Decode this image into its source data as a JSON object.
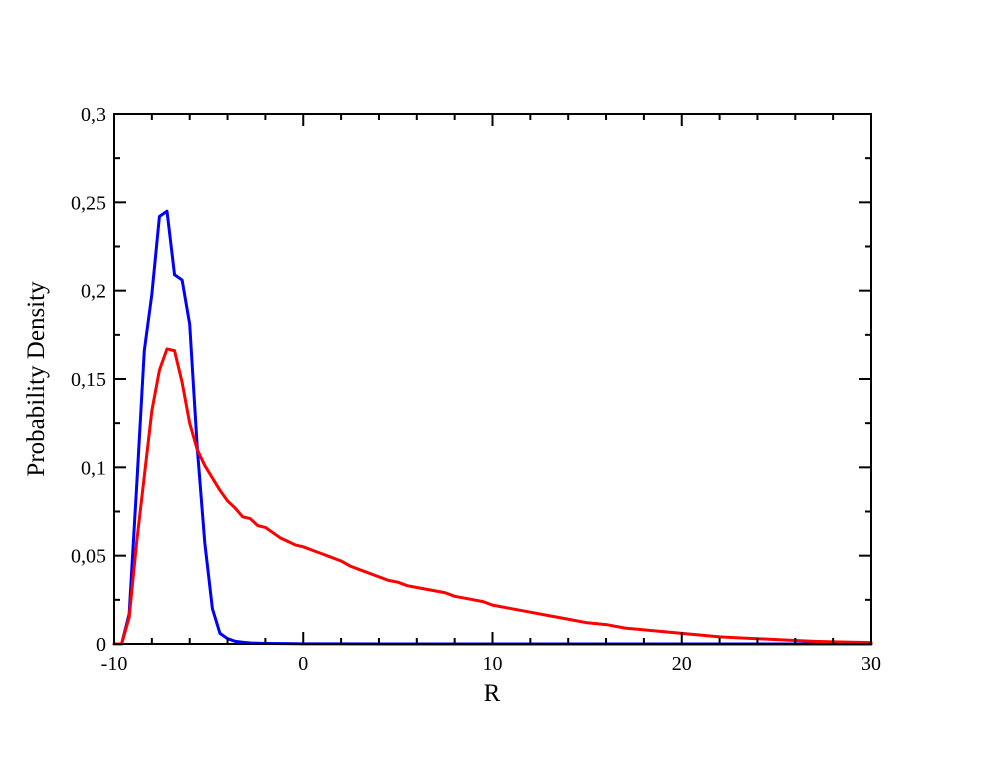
{
  "chart_data": {
    "type": "line",
    "title": "",
    "xlabel": "R",
    "ylabel": "Probability Density",
    "xlim": [
      -10,
      30
    ],
    "ylim": [
      0,
      0.3
    ],
    "x_ticks": [
      -10,
      0,
      10,
      20,
      30
    ],
    "x_tick_labels": [
      "-10",
      "0",
      "10",
      "20",
      "30"
    ],
    "y_ticks": [
      0,
      0.05,
      0.1,
      0.15,
      0.2,
      0.25,
      0.3
    ],
    "y_tick_labels": [
      "0",
      "0,05",
      "0,1",
      "0,15",
      "0,2",
      "0,25",
      "0,3"
    ],
    "grid": false,
    "legend": "none",
    "series": [
      {
        "color": "#0000ff",
        "x": [
          -10,
          -9.6,
          -9.2,
          -8.8,
          -8.4,
          -8.0,
          -7.6,
          -7.2,
          -6.8,
          -6.4,
          -6.0,
          -5.6,
          -5.2,
          -4.8,
          -4.4,
          -4.0,
          -3.6,
          -3.2,
          -2.8,
          -2.4,
          -2.0,
          -1.0,
          0,
          2,
          5,
          10,
          20,
          30
        ],
        "y": [
          0,
          0,
          0.017,
          0.09,
          0.166,
          0.198,
          0.242,
          0.245,
          0.209,
          0.206,
          0.181,
          0.111,
          0.057,
          0.02,
          0.006,
          0.003,
          0.0015,
          0.001,
          0.0006,
          0.0004,
          0.0003,
          0.0002,
          0.0001,
          5e-05,
          0,
          0,
          0,
          0
        ]
      },
      {
        "color": "#ff0000",
        "x": [
          -10,
          -9.6,
          -9.2,
          -8.8,
          -8.4,
          -8.0,
          -7.6,
          -7.2,
          -6.8,
          -6.4,
          -6.0,
          -5.6,
          -5.2,
          -4.8,
          -4.4,
          -4.0,
          -3.6,
          -3.2,
          -2.8,
          -2.4,
          -2.0,
          -1.6,
          -1.2,
          -0.8,
          -0.4,
          0.0,
          0.5,
          1.0,
          1.5,
          2.0,
          2.5,
          3.0,
          3.5,
          4.0,
          4.5,
          5.0,
          5.5,
          6.0,
          6.5,
          7.0,
          7.5,
          8.0,
          8.5,
          9.0,
          9.5,
          10,
          11,
          12,
          13,
          14,
          15,
          16,
          17,
          18,
          19,
          20,
          21,
          22,
          23,
          24,
          25,
          26,
          27,
          28,
          29,
          30
        ],
        "y": [
          0,
          0,
          0.015,
          0.058,
          0.095,
          0.132,
          0.155,
          0.167,
          0.166,
          0.148,
          0.125,
          0.11,
          0.101,
          0.094,
          0.087,
          0.081,
          0.077,
          0.072,
          0.071,
          0.067,
          0.066,
          0.063,
          0.06,
          0.058,
          0.056,
          0.055,
          0.053,
          0.051,
          0.049,
          0.047,
          0.044,
          0.042,
          0.04,
          0.038,
          0.036,
          0.035,
          0.033,
          0.032,
          0.031,
          0.03,
          0.029,
          0.027,
          0.026,
          0.025,
          0.024,
          0.022,
          0.02,
          0.018,
          0.016,
          0.014,
          0.012,
          0.011,
          0.009,
          0.008,
          0.007,
          0.006,
          0.005,
          0.004,
          0.0035,
          0.003,
          0.0025,
          0.002,
          0.0015,
          0.0012,
          0.001,
          0.0008
        ]
      }
    ]
  }
}
